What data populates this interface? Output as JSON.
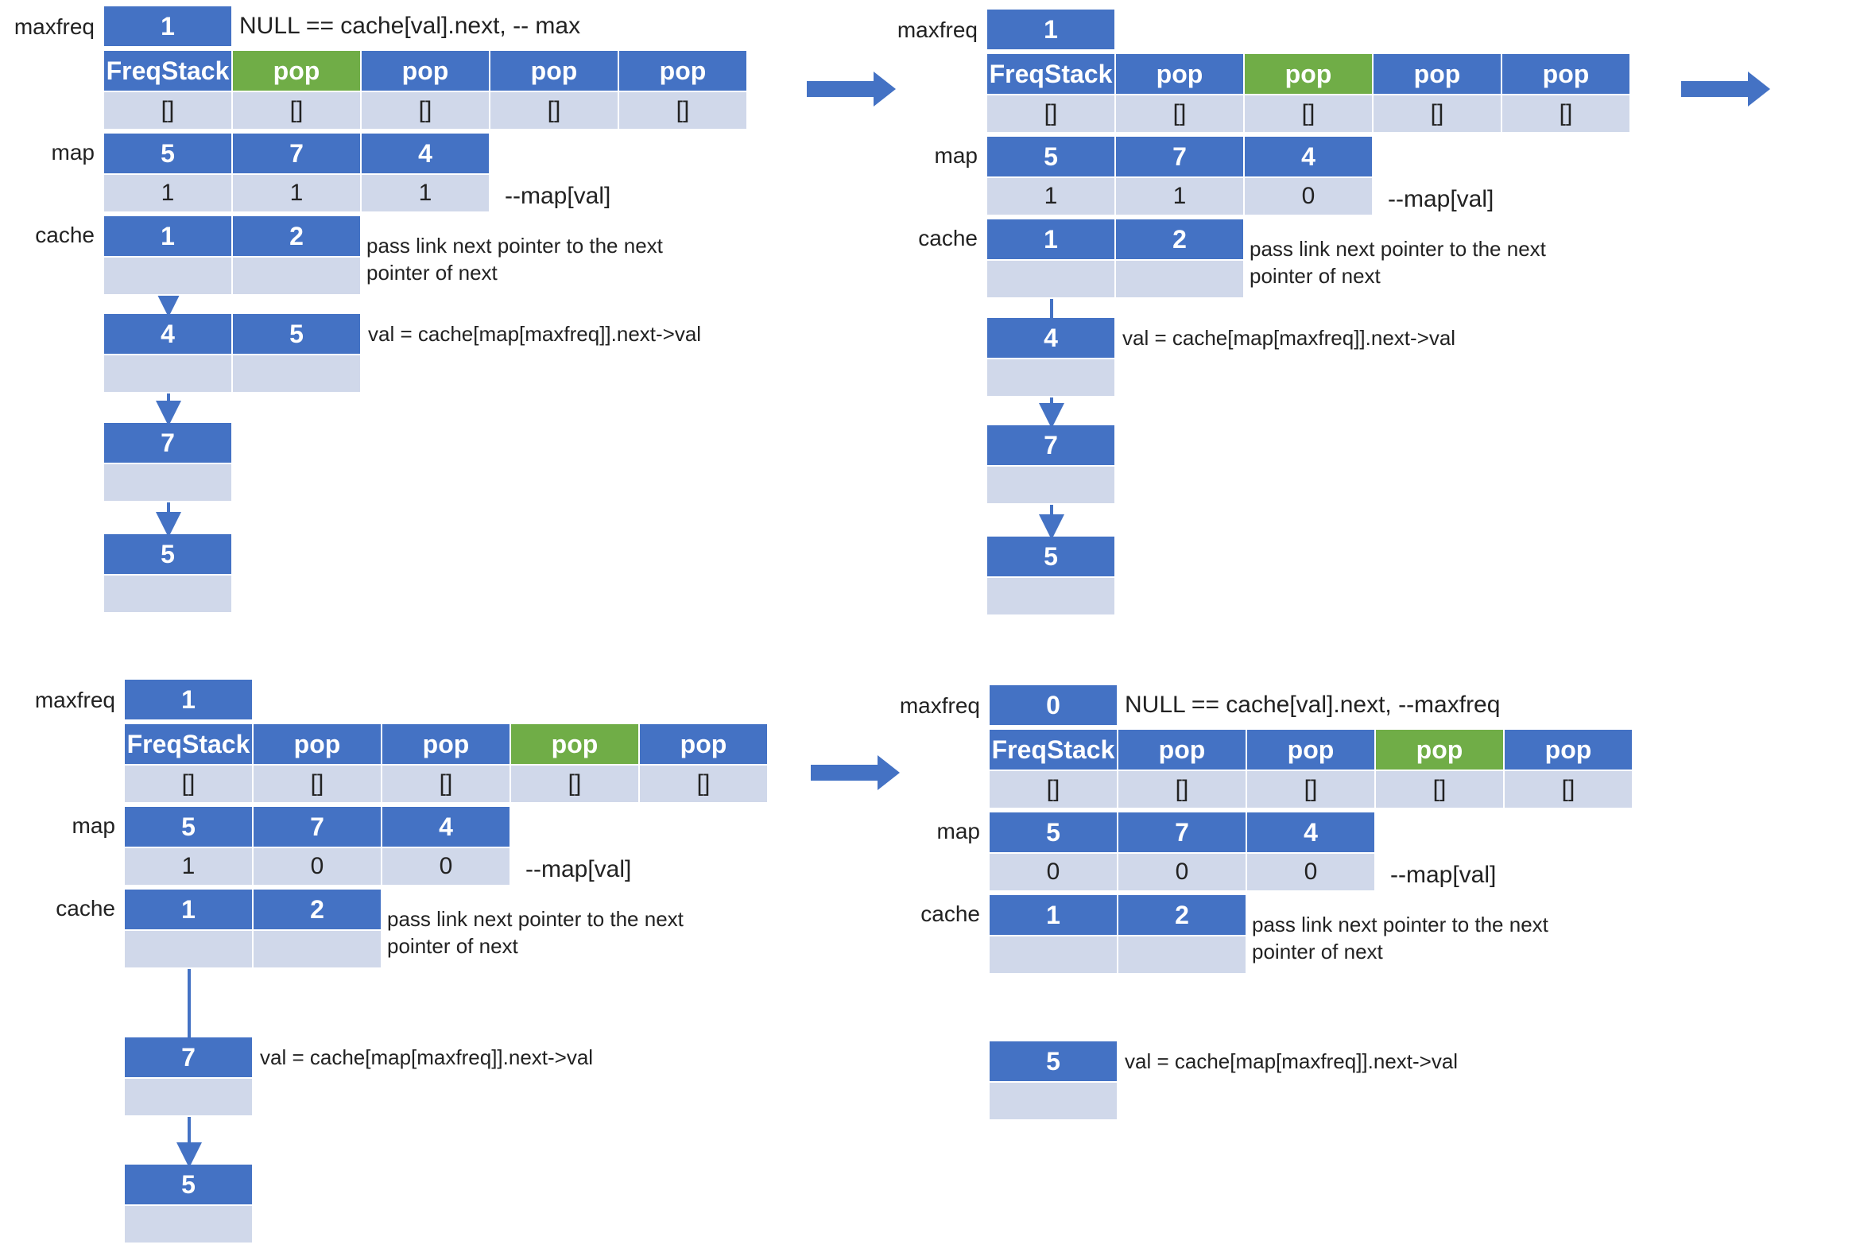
{
  "colors": {
    "header": "#4472c4",
    "highlight": "#70ad47",
    "cell": "#d0d8ea",
    "arrow": "#4472c4"
  },
  "labels": {
    "maxfreq": "maxfreq",
    "map": "map",
    "cache": "cache"
  },
  "panels": [
    {
      "maxfreq": "1",
      "top_note": "NULL == cache[val].next, -- max",
      "stack_header": [
        "FreqStack",
        "pop",
        "pop",
        "pop",
        "pop"
      ],
      "stack_values": [
        "[]",
        "[]",
        "[]",
        "[]",
        "[]"
      ],
      "highlight_index": 1,
      "map_keys": [
        "5",
        "7",
        "4"
      ],
      "map_values": [
        "1",
        "1",
        "1"
      ],
      "map_note": "--map[val]",
      "cache_keys": [
        "1",
        "2"
      ],
      "cache_note_1": "pass link next pointer to the next",
      "cache_note_2": "pointer of next",
      "chain_note": "val = cache[map[maxfreq]].next->val",
      "chain_row1": [
        "4",
        "5"
      ],
      "chain": [
        "7",
        "5"
      ]
    },
    {
      "maxfreq": "1",
      "top_note": "",
      "stack_header": [
        "FreqStack",
        "pop",
        "pop",
        "pop",
        "pop"
      ],
      "stack_values": [
        "[]",
        "[]",
        "[]",
        "[]",
        "[]"
      ],
      "highlight_index": 2,
      "map_keys": [
        "5",
        "7",
        "4"
      ],
      "map_values": [
        "1",
        "1",
        "0"
      ],
      "map_note": "--map[val]",
      "cache_keys": [
        "1",
        "2"
      ],
      "cache_note_1": "pass link next pointer to the next",
      "cache_note_2": "pointer of next",
      "chain_note": "val = cache[map[maxfreq]].next->val",
      "chain_row1": [
        "4"
      ],
      "chain": [
        "7",
        "5"
      ]
    },
    {
      "maxfreq": "1",
      "top_note": "",
      "stack_header": [
        "FreqStack",
        "pop",
        "pop",
        "pop",
        "pop"
      ],
      "stack_values": [
        "[]",
        "[]",
        "[]",
        "[]",
        "[]"
      ],
      "highlight_index": 3,
      "map_keys": [
        "5",
        "7",
        "4"
      ],
      "map_values": [
        "1",
        "0",
        "0"
      ],
      "map_note": "--map[val]",
      "cache_keys": [
        "1",
        "2"
      ],
      "cache_note_1": "pass link next pointer to the next",
      "cache_note_2": "pointer of next",
      "chain_note": "val = cache[map[maxfreq]].next->val",
      "chain_row1": [
        "7"
      ],
      "chain": [
        "5"
      ]
    },
    {
      "maxfreq": "0",
      "top_note": "NULL == cache[val].next, --maxfreq",
      "stack_header": [
        "FreqStack",
        "pop",
        "pop",
        "pop",
        "pop"
      ],
      "stack_values": [
        "[]",
        "[]",
        "[]",
        "[]",
        "[]"
      ],
      "highlight_index": 3,
      "map_keys": [
        "5",
        "7",
        "4"
      ],
      "map_values": [
        "0",
        "0",
        "0"
      ],
      "map_note": "--map[val]",
      "cache_keys": [
        "1",
        "2"
      ],
      "cache_note_1": "pass link next pointer to the next",
      "cache_note_2": "pointer of next",
      "chain_note": "val = cache[map[maxfreq]].next->val",
      "chain_row1": [
        "5"
      ],
      "chain": []
    }
  ]
}
